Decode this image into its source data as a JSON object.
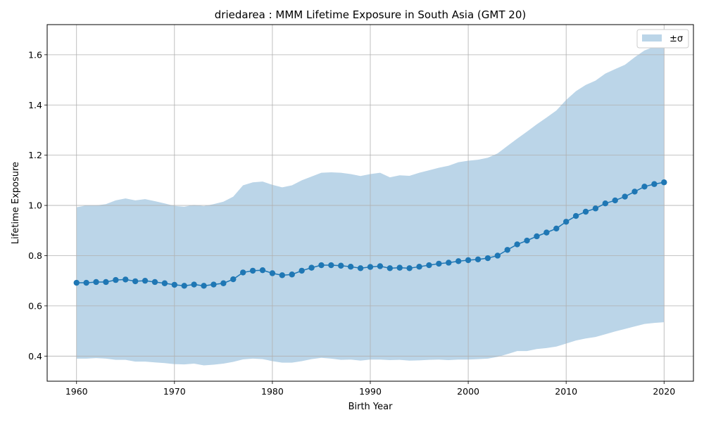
{
  "chart_data": {
    "type": "line",
    "title": "driedarea : MMM Lifetime Exposure in South Asia (GMT 20)",
    "xlabel": "Birth Year",
    "ylabel": "Lifetime Exposure",
    "xlim": [
      1957,
      2023
    ],
    "ylim": [
      0.3,
      1.72
    ],
    "xticks": [
      1960,
      1970,
      1980,
      1990,
      2000,
      2010,
      2020
    ],
    "yticks": [
      0.4,
      0.6,
      0.8,
      1.0,
      1.2,
      1.4,
      1.6
    ],
    "grid": true,
    "legend_position": "upper right",
    "x": [
      1960,
      1961,
      1962,
      1963,
      1964,
      1965,
      1966,
      1967,
      1968,
      1969,
      1970,
      1971,
      1972,
      1973,
      1974,
      1975,
      1976,
      1977,
      1978,
      1979,
      1980,
      1981,
      1982,
      1983,
      1984,
      1985,
      1986,
      1987,
      1988,
      1989,
      1990,
      1991,
      1992,
      1993,
      1994,
      1995,
      1996,
      1997,
      1998,
      1999,
      2000,
      2001,
      2002,
      2003,
      2004,
      2005,
      2006,
      2007,
      2008,
      2009,
      2010,
      2011,
      2012,
      2013,
      2014,
      2015,
      2016,
      2017,
      2018,
      2019,
      2020
    ],
    "series": [
      {
        "type": "line",
        "color": "#1f77b4",
        "marker": "circle",
        "values": [
          0.692,
          0.692,
          0.695,
          0.695,
          0.703,
          0.705,
          0.698,
          0.7,
          0.695,
          0.69,
          0.684,
          0.68,
          0.685,
          0.68,
          0.685,
          0.69,
          0.706,
          0.733,
          0.74,
          0.742,
          0.73,
          0.722,
          0.725,
          0.74,
          0.752,
          0.762,
          0.762,
          0.76,
          0.756,
          0.75,
          0.755,
          0.758,
          0.75,
          0.752,
          0.75,
          0.756,
          0.762,
          0.768,
          0.772,
          0.778,
          0.782,
          0.785,
          0.79,
          0.8,
          0.823,
          0.845,
          0.86,
          0.877,
          0.892,
          0.908,
          0.935,
          0.958,
          0.975,
          0.988,
          1.008,
          1.02,
          1.035,
          1.055,
          1.075,
          1.085,
          1.092
        ]
      },
      {
        "type": "band",
        "name": "±σ",
        "color": "#bbd5e8",
        "upper": [
          0.993,
          1.0,
          1.0,
          1.005,
          1.02,
          1.028,
          1.02,
          1.025,
          1.017,
          1.008,
          0.998,
          0.995,
          1.002,
          0.997,
          1.005,
          1.015,
          1.035,
          1.08,
          1.092,
          1.095,
          1.082,
          1.072,
          1.08,
          1.1,
          1.115,
          1.13,
          1.132,
          1.13,
          1.125,
          1.117,
          1.125,
          1.13,
          1.112,
          1.12,
          1.118,
          1.13,
          1.14,
          1.15,
          1.158,
          1.172,
          1.178,
          1.182,
          1.19,
          1.207,
          1.237,
          1.266,
          1.294,
          1.323,
          1.35,
          1.378,
          1.42,
          1.455,
          1.48,
          1.497,
          1.525,
          1.543,
          1.56,
          1.59,
          1.617,
          1.632,
          1.64
        ],
        "lower": [
          0.39,
          0.39,
          0.392,
          0.39,
          0.385,
          0.385,
          0.378,
          0.378,
          0.375,
          0.372,
          0.368,
          0.367,
          0.37,
          0.363,
          0.366,
          0.37,
          0.377,
          0.387,
          0.39,
          0.388,
          0.38,
          0.374,
          0.374,
          0.38,
          0.388,
          0.393,
          0.39,
          0.385,
          0.386,
          0.382,
          0.386,
          0.386,
          0.384,
          0.385,
          0.382,
          0.383,
          0.385,
          0.386,
          0.384,
          0.386,
          0.386,
          0.388,
          0.39,
          0.397,
          0.408,
          0.42,
          0.42,
          0.428,
          0.432,
          0.438,
          0.45,
          0.462,
          0.47,
          0.476,
          0.487,
          0.498,
          0.508,
          0.518,
          0.528,
          0.532,
          0.535
        ]
      }
    ]
  }
}
